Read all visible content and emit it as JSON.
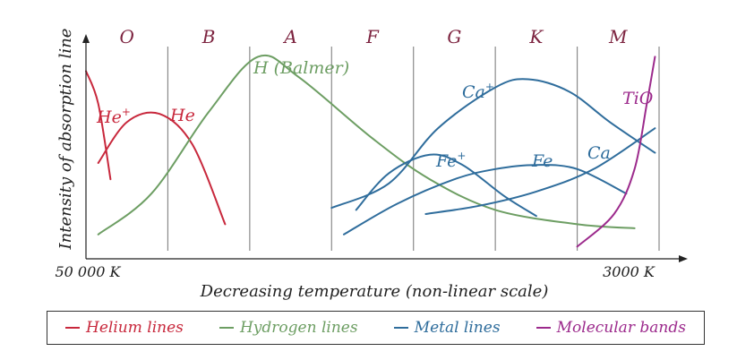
{
  "chart_data": {
    "type": "line",
    "xlabel": "Decreasing temperature (non-linear scale)",
    "ylabel": "Intensity of absorption line",
    "x_left_label": "50 000 K",
    "x_right_label": "3000 K",
    "xlim": [
      0,
      7
    ],
    "ylim": [
      0,
      1
    ],
    "spectral_classes": [
      "O",
      "B",
      "A",
      "F",
      "G",
      "K",
      "M"
    ],
    "colors": {
      "helium": "#c8283c",
      "hydrogen": "#6d9e63",
      "metal": "#2f6d9c",
      "molecular": "#9c2a8c"
    },
    "series": [
      {
        "name": "He+",
        "label": "He",
        "sup": "+",
        "group": "helium",
        "points": [
          [
            0,
            0.88
          ],
          [
            0.15,
            0.72
          ],
          [
            0.3,
            0.35
          ]
        ]
      },
      {
        "name": "He",
        "label": "He",
        "sup": "",
        "group": "helium",
        "points": [
          [
            0.15,
            0.43
          ],
          [
            0.5,
            0.63
          ],
          [
            0.9,
            0.67
          ],
          [
            1.3,
            0.52
          ],
          [
            1.7,
            0.13
          ]
        ]
      },
      {
        "name": "H (Balmer)",
        "label": "H (Balmer)",
        "sup": "",
        "group": "hydrogen",
        "points": [
          [
            0.15,
            0.08
          ],
          [
            0.8,
            0.28
          ],
          [
            1.5,
            0.68
          ],
          [
            2.1,
            0.95
          ],
          [
            2.6,
            0.85
          ],
          [
            3.5,
            0.55
          ],
          [
            4.2,
            0.35
          ],
          [
            5.0,
            0.2
          ],
          [
            6.0,
            0.13
          ],
          [
            6.7,
            0.11
          ]
        ]
      },
      {
        "name": "Ca+",
        "label": "Ca",
        "sup": "+",
        "group": "metal",
        "points": [
          [
            3.0,
            0.21
          ],
          [
            3.7,
            0.33
          ],
          [
            4.3,
            0.6
          ],
          [
            5.0,
            0.8
          ],
          [
            5.4,
            0.84
          ],
          [
            5.9,
            0.78
          ],
          [
            6.4,
            0.63
          ],
          [
            6.95,
            0.48
          ]
        ]
      },
      {
        "name": "Fe+",
        "label": "Fe",
        "sup": "+",
        "group": "metal",
        "points": [
          [
            3.3,
            0.2
          ],
          [
            3.7,
            0.38
          ],
          [
            4.2,
            0.47
          ],
          [
            4.6,
            0.42
          ],
          [
            5.1,
            0.27
          ],
          [
            5.5,
            0.17
          ]
        ]
      },
      {
        "name": "Fe",
        "label": "Fe",
        "sup": "",
        "group": "metal",
        "points": [
          [
            3.15,
            0.08
          ],
          [
            3.8,
            0.23
          ],
          [
            4.5,
            0.35
          ],
          [
            5.0,
            0.4
          ],
          [
            5.5,
            0.42
          ],
          [
            6.0,
            0.4
          ],
          [
            6.6,
            0.28
          ]
        ]
      },
      {
        "name": "Ca",
        "label": "Ca",
        "sup": "",
        "group": "metal",
        "points": [
          [
            4.15,
            0.18
          ],
          [
            4.8,
            0.22
          ],
          [
            5.5,
            0.29
          ],
          [
            6.2,
            0.4
          ],
          [
            6.95,
            0.6
          ]
        ]
      },
      {
        "name": "TiO",
        "label": "TiO",
        "sup": "",
        "group": "molecular",
        "points": [
          [
            6.0,
            0.02
          ],
          [
            6.45,
            0.18
          ],
          [
            6.7,
            0.4
          ],
          [
            6.85,
            0.72
          ],
          [
            6.95,
            0.95
          ]
        ]
      }
    ]
  },
  "legend": [
    {
      "label": "Helium lines",
      "group": "helium"
    },
    {
      "label": "Hydrogen lines",
      "group": "hydrogen"
    },
    {
      "label": "Metal lines",
      "group": "metal"
    },
    {
      "label": "Molecular bands",
      "group": "molecular"
    }
  ]
}
